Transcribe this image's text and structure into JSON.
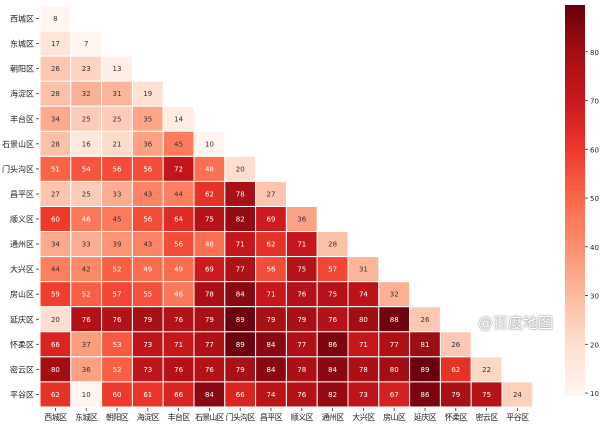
{
  "chart_data": {
    "type": "heatmap",
    "title": "",
    "xlabel": "",
    "ylabel": "",
    "rows": [
      "西城区",
      "东城区",
      "朝阳区",
      "海淀区",
      "丰台区",
      "石景山区",
      "门头沟区",
      "昌平区",
      "顺义区",
      "通州区",
      "大兴区",
      "房山区",
      "延庆区",
      "怀柔区",
      "密云区",
      "平谷区"
    ],
    "columns": [
      "西城区",
      "东城区",
      "朝阳区",
      "海淀区",
      "丰台区",
      "石景山区",
      "门头沟区",
      "昌平区",
      "顺义区",
      "通州区",
      "大兴区",
      "房山区",
      "延庆区",
      "怀柔区",
      "密云区",
      "平谷区"
    ],
    "mask": "upper-triangle",
    "values": [
      [
        8
      ],
      [
        17,
        7
      ],
      [
        26,
        23,
        13
      ],
      [
        28,
        32,
        31,
        19
      ],
      [
        34,
        25,
        25,
        35,
        14
      ],
      [
        28,
        16,
        21,
        36,
        45,
        10
      ],
      [
        51,
        54,
        56,
        56,
        72,
        48,
        20
      ],
      [
        27,
        25,
        33,
        43,
        44,
        62,
        78,
        27
      ],
      [
        60,
        46,
        45,
        56,
        64,
        75,
        82,
        69,
        36
      ],
      [
        34,
        33,
        39,
        43,
        56,
        48,
        71,
        62,
        71,
        28
      ],
      [
        44,
        42,
        52,
        49,
        49,
        69,
        77,
        56,
        75,
        57,
        31
      ],
      [
        59,
        52,
        57,
        55,
        46,
        78,
        84,
        71,
        76,
        75,
        74,
        32
      ],
      [
        20,
        76,
        76,
        79,
        76,
        79,
        89,
        79,
        79,
        76,
        80,
        88,
        26
      ],
      [
        66,
        37,
        53,
        73,
        71,
        77,
        89,
        84,
        77,
        86,
        71,
        77,
        81,
        26
      ],
      [
        80,
        36,
        52,
        73,
        76,
        76,
        79,
        84,
        78,
        84,
        78,
        80,
        89,
        62,
        22
      ],
      [
        62,
        10,
        60,
        61,
        66,
        84,
        66,
        74,
        76,
        82,
        73,
        67,
        86,
        79,
        75,
        24
      ]
    ],
    "colormap": "Reds",
    "colormap_stops": [
      "#fff5f0",
      "#fee0d2",
      "#fcbba1",
      "#fc9272",
      "#fb6a4a",
      "#ef3b2c",
      "#cb181d",
      "#a50f15",
      "#67000d"
    ],
    "colorbar": {
      "range": [
        9.6,
        89.6
      ],
      "ticks": [
        10,
        20,
        30,
        40,
        50,
        60,
        70,
        80
      ]
    },
    "annotations": true
  },
  "watermark": "@百度地图"
}
